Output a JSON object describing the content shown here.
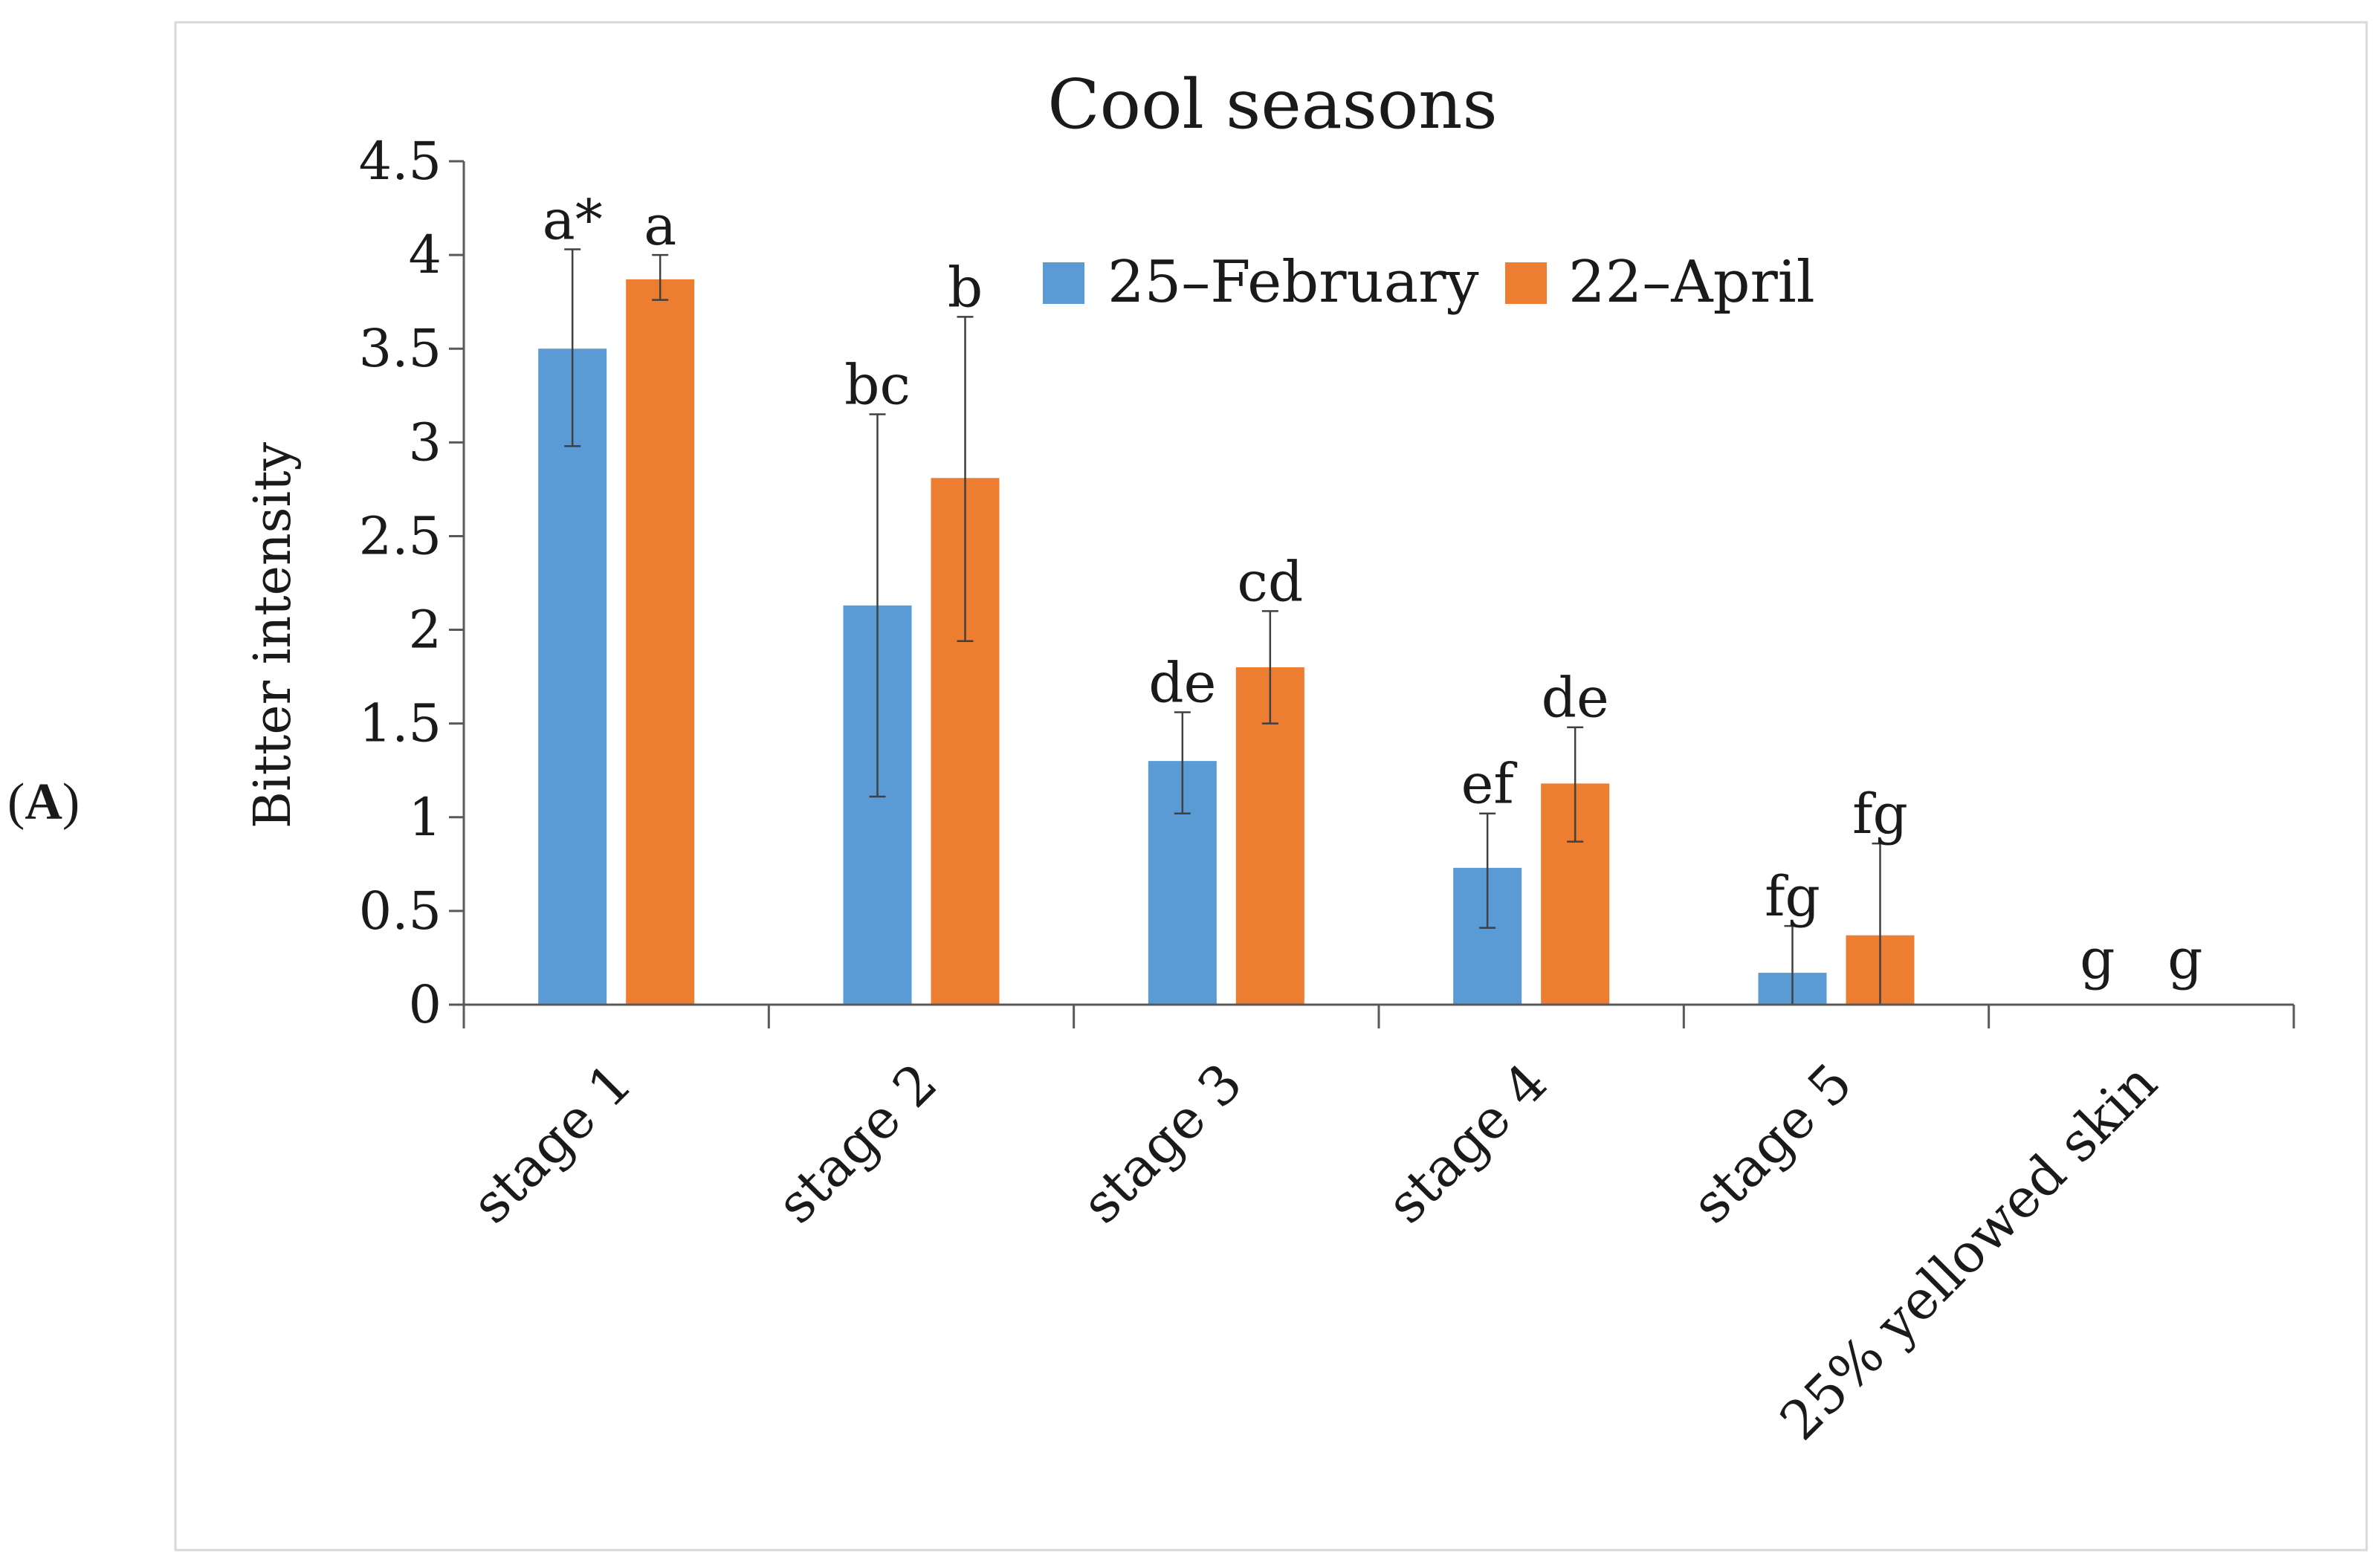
{
  "panel_label": {
    "open": "(",
    "letter": "A",
    "close": ")"
  },
  "colors": {
    "series1": "#5b9bd5",
    "series2": "#ed7d31",
    "axis": "#595959",
    "frame": "#d9d9d9",
    "error": "#404040"
  },
  "chart_data": {
    "type": "bar",
    "title": "Cool seasons",
    "xlabel": "",
    "ylabel": "Bitter intensity",
    "ylim": [
      0,
      4.5
    ],
    "yticks": [
      "0",
      "0.5",
      "1",
      "1.5",
      "2",
      "2.5",
      "3",
      "3.5",
      "4",
      "4.5"
    ],
    "ytick_values": [
      0,
      0.5,
      1,
      1.5,
      2,
      2.5,
      3,
      3.5,
      4,
      4.5
    ],
    "categories": [
      "stage 1",
      "stage 2",
      "stage 3",
      "stage 4",
      "stage 5",
      "25% yellowed skin"
    ],
    "legend_position": "top-right",
    "series": [
      {
        "name": "25–February",
        "values": [
          3.5,
          2.13,
          1.3,
          0.73,
          0.17,
          0
        ],
        "err_low": [
          2.98,
          1.11,
          1.02,
          0.41,
          0.0,
          0
        ],
        "err_high": [
          4.03,
          3.15,
          1.56,
          1.02,
          0.42,
          0
        ],
        "letters": [
          "a*",
          "bc",
          "de",
          "ef",
          "fg",
          "g"
        ]
      },
      {
        "name": "22–April",
        "values": [
          3.87,
          2.81,
          1.8,
          1.18,
          0.37,
          0
        ],
        "err_low": [
          3.76,
          1.94,
          1.5,
          0.87,
          0.0,
          0
        ],
        "err_high": [
          4.0,
          3.67,
          2.1,
          1.48,
          0.86,
          0
        ],
        "letters": [
          "a",
          "b",
          "cd",
          "de",
          "fg",
          "g"
        ]
      }
    ]
  }
}
